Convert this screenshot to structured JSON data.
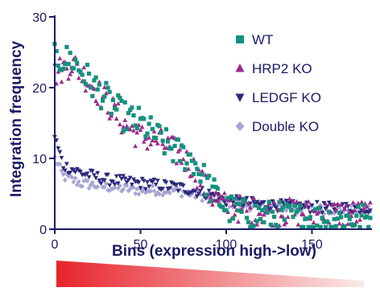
{
  "chart_data": {
    "type": "scatter",
    "title": "",
    "xlabel": "Bins (expression high->low)",
    "ylabel": "Integration frequency",
    "xlim": [
      0,
      185
    ],
    "ylim": [
      0,
      30
    ],
    "xticks": [
      0,
      50,
      100,
      150
    ],
    "yticks": [
      0,
      10,
      20,
      30
    ],
    "legend_position": "top-right",
    "gradient_bar": {
      "from_color": "#e8232b",
      "to_color": "#fbeaea",
      "meaning": "expression high->low"
    },
    "series": [
      {
        "name": "WT",
        "marker": "square",
        "color": "#17907e",
        "knots": [
          [
            0,
            24
          ],
          [
            10,
            24
          ],
          [
            20,
            21
          ],
          [
            30,
            18.5
          ],
          [
            40,
            16
          ],
          [
            50,
            15
          ],
          [
            60,
            13
          ],
          [
            70,
            11
          ],
          [
            80,
            10
          ],
          [
            90,
            6
          ],
          [
            100,
            3
          ],
          [
            110,
            2.2
          ],
          [
            120,
            2
          ],
          [
            130,
            1.8
          ],
          [
            140,
            1.6
          ],
          [
            150,
            1.5
          ],
          [
            160,
            1.5
          ],
          [
            170,
            1.5
          ],
          [
            185,
            1.5
          ]
        ],
        "jitter": 2.2
      },
      {
        "name": "HRP2 KO",
        "marker": "triangle-up",
        "color": "#9b2a8c",
        "knots": [
          [
            0,
            22
          ],
          [
            10,
            23.5
          ],
          [
            20,
            21
          ],
          [
            30,
            18
          ],
          [
            40,
            15
          ],
          [
            50,
            13
          ],
          [
            60,
            12.5
          ],
          [
            70,
            11
          ],
          [
            80,
            9
          ],
          [
            90,
            5
          ],
          [
            100,
            3.2
          ],
          [
            110,
            2.8
          ],
          [
            120,
            2.6
          ],
          [
            130,
            2.4
          ],
          [
            140,
            2.4
          ],
          [
            150,
            2.2
          ],
          [
            160,
            2.2
          ],
          [
            170,
            2.2
          ],
          [
            185,
            2.2
          ]
        ],
        "jitter": 2.0
      },
      {
        "name": "LEDGF KO",
        "marker": "triangle-down",
        "color": "#2a2a7a",
        "knots": [
          [
            0,
            13
          ],
          [
            5,
            9
          ],
          [
            15,
            8
          ],
          [
            30,
            7
          ],
          [
            50,
            6.5
          ],
          [
            70,
            6
          ],
          [
            90,
            5
          ],
          [
            100,
            4
          ],
          [
            110,
            3.8
          ],
          [
            120,
            3.5
          ],
          [
            140,
            3.2
          ],
          [
            160,
            3
          ],
          [
            185,
            3
          ]
        ],
        "jitter": 0.8
      },
      {
        "name": "Double KO",
        "marker": "diamond",
        "color": "#a6a6d4",
        "knots": [
          [
            0,
            10
          ],
          [
            5,
            7.5
          ],
          [
            15,
            6.5
          ],
          [
            30,
            6
          ],
          [
            50,
            5.5
          ],
          [
            70,
            5.5
          ],
          [
            90,
            4.5
          ],
          [
            100,
            3.8
          ],
          [
            120,
            3.2
          ],
          [
            140,
            3
          ],
          [
            160,
            2.8
          ],
          [
            185,
            2.8
          ]
        ],
        "jitter": 0.7
      }
    ]
  }
}
